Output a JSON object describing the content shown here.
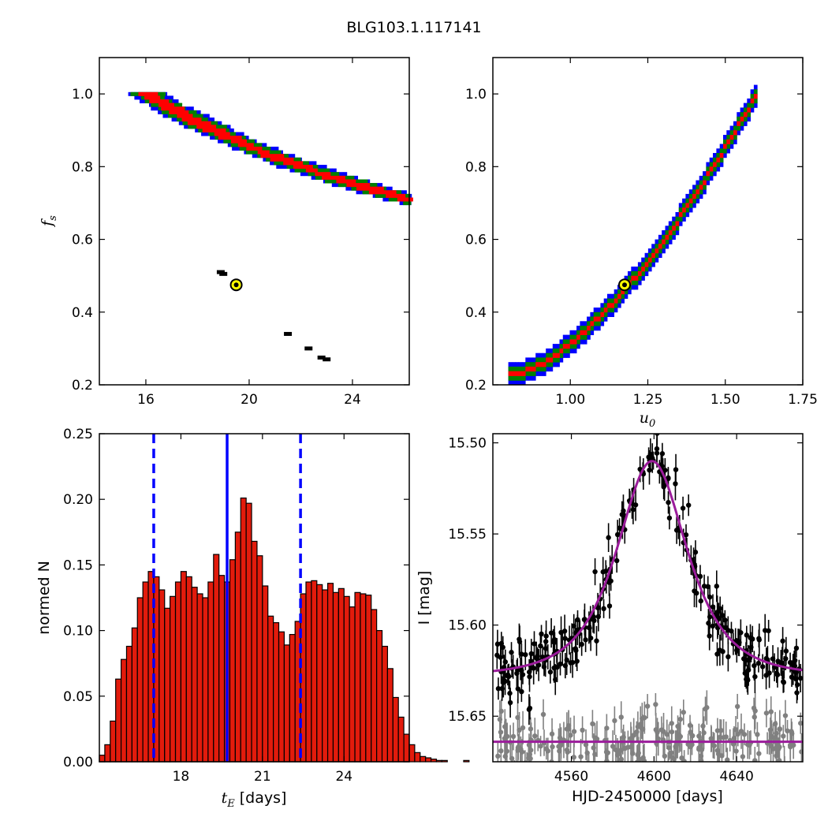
{
  "figure": {
    "title": "BLG103.1.117141"
  },
  "colors": {
    "sigma1": "#ff0000",
    "sigma2": "#008000",
    "sigma3": "#0000ff",
    "samples": "#000000",
    "best": "#ffff00",
    "hist_bar": "#e21b0c",
    "hist_lines": "#0000ff",
    "model": "#9b1c9b",
    "data_event": "#000000",
    "data_ref": "#808080"
  },
  "chart_data": [
    {
      "type": "heatmap",
      "xlabel": "",
      "ylabel": "f_s",
      "xlim": [
        14.2,
        26.2
      ],
      "ylim": [
        0.2,
        1.1
      ],
      "xticks": [
        "16",
        "20",
        "24"
      ],
      "xtick_values": [
        16,
        20,
        24
      ],
      "yticks": [
        "0.2",
        "0.4",
        "0.6",
        "0.8",
        "1.0"
      ],
      "ytick_values": [
        0.2,
        0.4,
        0.6,
        0.8,
        1.0
      ],
      "band": {
        "tE_at_fs1": 15.9,
        "fs_exponent": 1.45,
        "sigma_widths_tE": [
          0.45,
          0.85,
          1.15
        ]
      },
      "best_fit": {
        "x": 19.5,
        "y": 0.475
      },
      "samples": [
        {
          "x": 18.9,
          "y": 0.51
        },
        {
          "x": 19.0,
          "y": 0.505
        },
        {
          "x": 21.5,
          "y": 0.34
        },
        {
          "x": 22.3,
          "y": 0.3
        },
        {
          "x": 22.8,
          "y": 0.275
        },
        {
          "x": 23.0,
          "y": 0.27
        }
      ]
    },
    {
      "type": "heatmap",
      "xlabel": "u_0",
      "ylabel": "",
      "xlim": [
        0.75,
        1.75
      ],
      "ylim": [
        0.2,
        1.1
      ],
      "xticks": [
        "1.00",
        "1.25",
        "1.50",
        "1.75"
      ],
      "xtick_values": [
        1.0,
        1.25,
        1.5,
        1.75
      ],
      "yticks": [
        "0.2",
        "0.4",
        "0.6",
        "0.8",
        "1.0"
      ],
      "ytick_values": [
        0.2,
        0.4,
        0.6,
        0.8,
        1.0
      ],
      "band": {
        "u0_range": [
          0.8,
          1.6
        ],
        "fs_range": [
          0.22,
          1.0
        ],
        "curve_exponent": 1.55
      },
      "best_fit": {
        "x": 1.175,
        "y": 0.475
      }
    },
    {
      "type": "bar",
      "xlabel": "t_E [days]",
      "ylabel": "normed N",
      "xlim": [
        15.0,
        26.4
      ],
      "ylim": [
        0,
        0.25
      ],
      "xticks": [
        "18",
        "21",
        "24"
      ],
      "xtick_values": [
        18,
        21,
        24
      ],
      "yticks": [
        "0.00",
        "0.05",
        "0.10",
        "0.15",
        "0.20",
        "0.25"
      ],
      "ytick_values": [
        0,
        0.05,
        0.1,
        0.15,
        0.2,
        0.25
      ],
      "bin_start": 15.0,
      "bin_width": 0.2,
      "values": [
        0.005,
        0.013,
        0.031,
        0.063,
        0.078,
        0.088,
        0.102,
        0.125,
        0.137,
        0.145,
        0.141,
        0.131,
        0.117,
        0.126,
        0.137,
        0.145,
        0.141,
        0.133,
        0.128,
        0.125,
        0.137,
        0.158,
        0.142,
        0.137,
        0.154,
        0.175,
        0.201,
        0.197,
        0.168,
        0.157,
        0.134,
        0.111,
        0.106,
        0.099,
        0.089,
        0.097,
        0.107,
        0.128,
        0.137,
        0.138,
        0.135,
        0.131,
        0.136,
        0.129,
        0.132,
        0.126,
        0.118,
        0.129,
        0.128,
        0.127,
        0.116,
        0.1,
        0.088,
        0.071,
        0.049,
        0.034,
        0.021,
        0.013,
        0.007,
        0.004,
        0.003,
        0.002,
        0.001,
        0.001,
        0.0,
        0.0,
        0.0,
        0.001
      ],
      "median": 19.7,
      "interval_lines": [
        17.0,
        22.4
      ]
    },
    {
      "type": "scatter",
      "xlabel": "HJD-2450000 [days]",
      "ylabel": "I [mag]",
      "xlim": [
        4522,
        4672
      ],
      "ylim": [
        15.675,
        15.495
      ],
      "y_inverted": true,
      "xticks": [
        "4560",
        "4600",
        "4640"
      ],
      "xtick_values": [
        4560,
        4600,
        4640
      ],
      "yticks": [
        "15.50",
        "15.55",
        "15.60",
        "15.65"
      ],
      "ytick_values": [
        15.5,
        15.55,
        15.6,
        15.65
      ],
      "model_event": {
        "baseline": 15.628,
        "peak": 15.51,
        "t0": 4599,
        "tE": 19.5,
        "u0": 1.175
      },
      "model_reference": {
        "baseline": 15.664
      },
      "series": [
        {
          "name": "",
          "points": 260,
          "scatter": 0.008,
          "err": 0.007
        },
        {
          "name": "",
          "points": 230,
          "scatter": 0.008,
          "err": 0.008
        }
      ]
    }
  ]
}
